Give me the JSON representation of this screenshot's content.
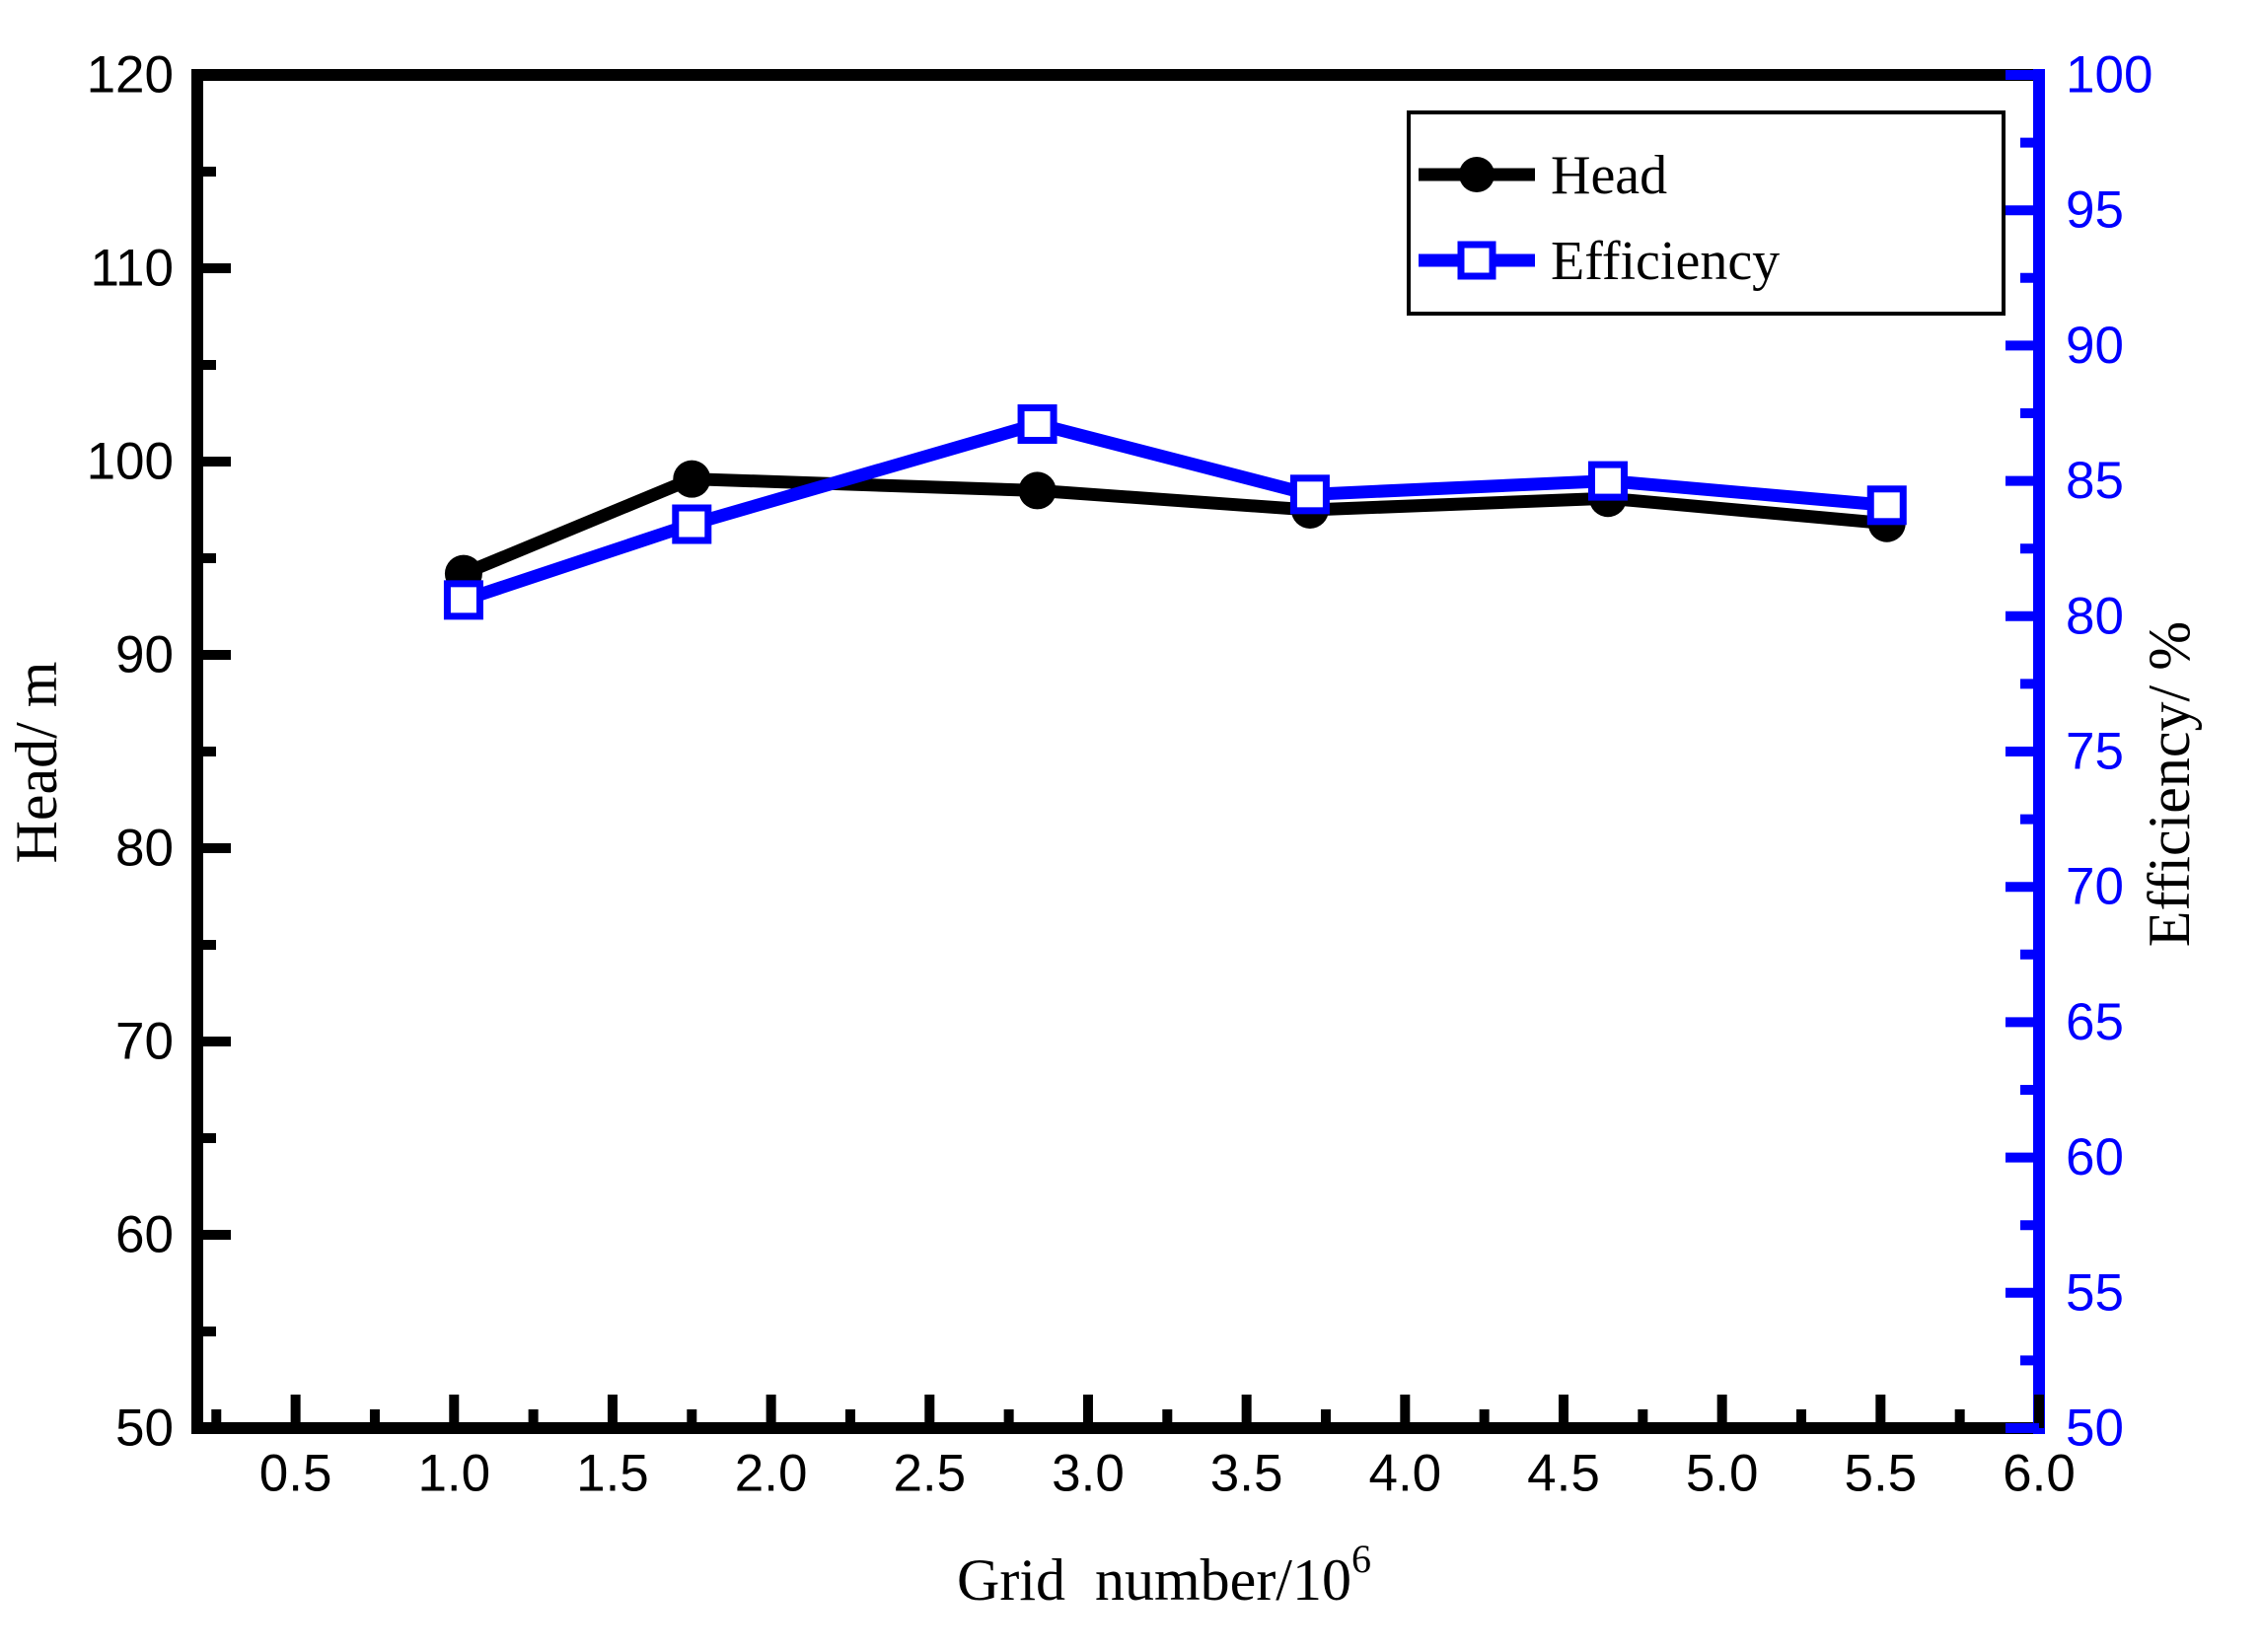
{
  "figure": {
    "background": "#ffffff",
    "left_axis_color": "#000000",
    "right_axis_color": "#0000ff",
    "tick_label_color_left": "#000000",
    "tick_label_color_right": "#0000ff"
  },
  "chart_data": {
    "type": "line",
    "title": "",
    "xlabel": "Grid  number/10",
    "xlabel_superscript": "6",
    "ylabel_left": "Head/ m",
    "ylabel_right": "Efficiency/ %",
    "x": [
      1.03,
      1.75,
      2.84,
      3.7,
      4.64,
      5.52
    ],
    "series": [
      {
        "name": "Head",
        "axis": "left",
        "color": "#000000",
        "marker": "filled-circle",
        "values": [
          94.2,
          99.1,
          98.5,
          97.5,
          98.1,
          96.8
        ]
      },
      {
        "name": "Efficiency",
        "axis": "right",
        "color": "#0000ff",
        "marker": "open-square",
        "values": [
          80.6,
          83.4,
          87.1,
          84.5,
          85.0,
          84.1
        ]
      }
    ],
    "xlim": [
      0.19,
      6.0
    ],
    "ylim_left": [
      50,
      120
    ],
    "ylim_right": [
      50,
      100
    ],
    "x_ticks": [
      0.5,
      1.0,
      1.5,
      2.0,
      2.5,
      3.0,
      3.5,
      4.0,
      4.5,
      5.0,
      5.5,
      6.0
    ],
    "x_tick_labels": [
      "0.5",
      "1.0",
      "1.5",
      "2.0",
      "2.5",
      "3.0",
      "3.5",
      "4.0",
      "4.5",
      "5.0",
      "5.5",
      "6.0"
    ],
    "x_minor_step": 0.25,
    "y_left_ticks": [
      50,
      60,
      70,
      80,
      90,
      100,
      110,
      120
    ],
    "y_left_tick_labels": [
      "50",
      "60",
      "70",
      "80",
      "90",
      "100",
      "110",
      "120"
    ],
    "y_left_minor_step": 5,
    "y_right_ticks": [
      50,
      55,
      60,
      65,
      70,
      75,
      80,
      85,
      90,
      95,
      100
    ],
    "y_right_tick_labels": [
      "50",
      "55",
      "60",
      "65",
      "70",
      "75",
      "80",
      "85",
      "90",
      "95",
      "100"
    ],
    "y_right_minor_step": 2.5,
    "grid": "off",
    "legend_position": "top-right",
    "legend_entries": [
      "Head",
      "Efficiency"
    ]
  }
}
